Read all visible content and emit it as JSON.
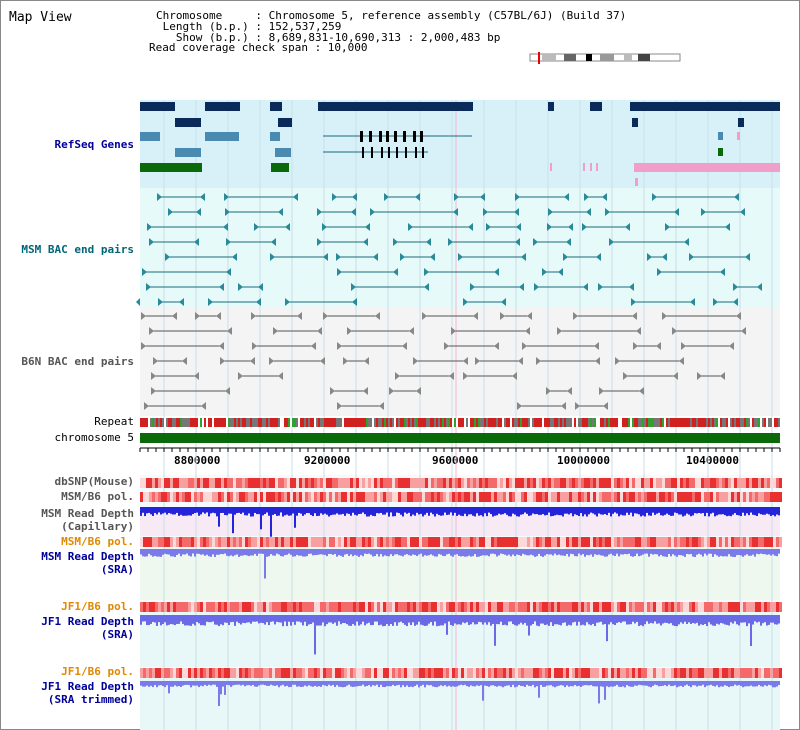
{
  "title": "Map View",
  "info": {
    "chromosome": "Chromosome     : Chromosome 5, reference assembly (C57BL/6J) (Build 37)",
    "length": " Length (b.p.) : 152,537,259",
    "show": "   Show (b.p.) : 8,689,831-10,690,313 : 2,000,483 bp",
    "coverage": "Read coverage check span : 10,000"
  },
  "tracks": {
    "refseq": "RefSeq Genes",
    "msm_bac": "MSM BAC end pairs",
    "b6n_bac": "B6N BAC end pairs",
    "repeat": "Repeat",
    "chromosome": "chromosome 5",
    "dbsnp": "dbSNP(Mouse)",
    "msm_b6_pol_1": "MSM/B6 pol.",
    "msm_depth_cap": "MSM Read Depth\n(Capillary)",
    "msm_b6_pol_2": "MSM/B6 pol.",
    "msm_depth_sra": "MSM Read Depth\n(SRA)",
    "jf1_b6_pol_1": "JF1/B6 pol.",
    "jf1_depth_sra": "JF1 Read Depth\n(SRA)",
    "jf1_b6_pol_2": "JF1/B6 pol.",
    "jf1_depth_trim": "JF1 Read Depth\n(SRA trimmed)"
  },
  "axis": {
    "ticks": [
      "8800000",
      "9200000",
      "9600000",
      "10000000",
      "10400000"
    ]
  },
  "colors": {
    "refseq_bg": "#d8f0f8",
    "msm_bg": "#e6fafa",
    "b6n_bg": "#f4f4f4",
    "navy": "#0a2a5a",
    "teal": "#1a6a7a",
    "green": "#0a6a0a",
    "pink": "#f0a0c8",
    "depth_blue": "#2020e0",
    "depth_light": "#7878ee",
    "label_blue": "#000099",
    "label_teal": "#006677",
    "label_grey": "#555555",
    "label_orange": "#e08800"
  }
}
